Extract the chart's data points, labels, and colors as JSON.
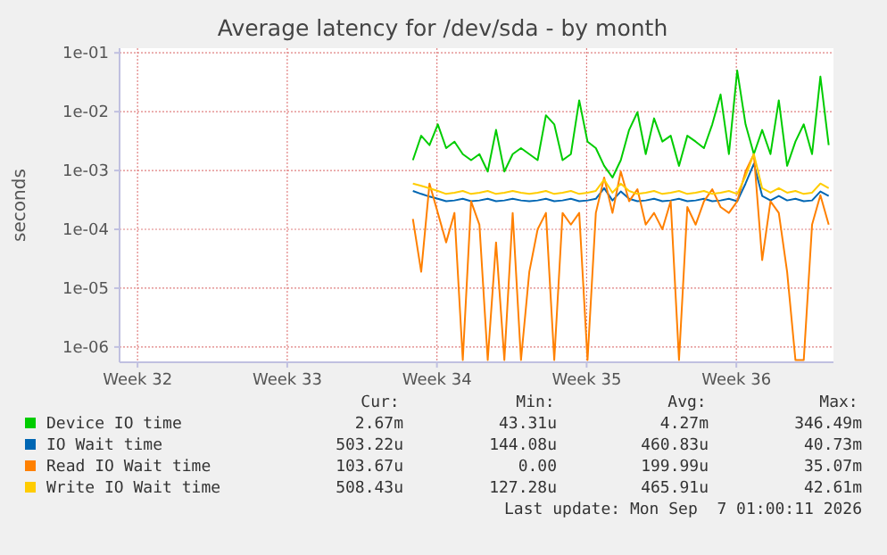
{
  "chart_data": {
    "type": "line",
    "title": "Average latency for /dev/sda - by month",
    "ylabel": "seconds",
    "log": true,
    "grid": true,
    "legend": "bottom",
    "xlim": [
      "2026-08-04T15:50",
      "2026-09-07T01:00"
    ],
    "xticks": [
      {
        "value": "2026-08-05T12:00",
        "label": "Week 32"
      },
      {
        "value": "2026-08-12T12:00",
        "label": "Week 33"
      },
      {
        "value": "2026-08-19T12:00",
        "label": "Week 34"
      },
      {
        "value": "2026-08-26T12:00",
        "label": "Week 35"
      },
      {
        "value": "2026-09-02T12:00",
        "label": "Week 36"
      }
    ],
    "ylim": [
      5.5e-07,
      0.12
    ],
    "yticks": [
      {
        "value": 1e-06,
        "label": "1e-06"
      },
      {
        "value": 1e-05,
        "label": "1e-05"
      },
      {
        "value": 0.0001,
        "label": "1e-04"
      },
      {
        "value": 0.001,
        "label": "1e-03"
      },
      {
        "value": 0.01,
        "label": "1e-02"
      },
      {
        "value": 0.1,
        "label": "1e-01"
      }
    ],
    "x": [
      "2026-08-18T09:00",
      "2026-08-18T18:20",
      "2026-08-19T03:40",
      "2026-08-19T13:00",
      "2026-08-19T22:20",
      "2026-08-20T07:40",
      "2026-08-20T17:00",
      "2026-08-21T02:20",
      "2026-08-21T11:40",
      "2026-08-21T21:00",
      "2026-08-22T06:20",
      "2026-08-22T15:40",
      "2026-08-23T01:00",
      "2026-08-23T10:20",
      "2026-08-23T19:40",
      "2026-08-24T05:00",
      "2026-08-24T14:20",
      "2026-08-24T23:40",
      "2026-08-25T09:00",
      "2026-08-25T18:20",
      "2026-08-26T03:40",
      "2026-08-26T13:00",
      "2026-08-26T22:20",
      "2026-08-27T07:40",
      "2026-08-27T17:00",
      "2026-08-28T02:20",
      "2026-08-28T11:40",
      "2026-08-28T21:00",
      "2026-08-29T06:20",
      "2026-08-29T15:40",
      "2026-08-30T01:00",
      "2026-08-30T10:20",
      "2026-08-30T19:40",
      "2026-08-31T05:00",
      "2026-08-31T14:20",
      "2026-08-31T23:40",
      "2026-09-01T09:00",
      "2026-09-01T18:20",
      "2026-09-02T03:40",
      "2026-09-02T13:00",
      "2026-09-02T22:20",
      "2026-09-03T07:40",
      "2026-09-03T17:00",
      "2026-09-04T02:20",
      "2026-09-04T11:40",
      "2026-09-04T21:00",
      "2026-09-05T06:20",
      "2026-09-05T15:40",
      "2026-09-06T01:00",
      "2026-09-06T10:20",
      "2026-09-06T19:40"
    ],
    "series": [
      {
        "name": "Device IO time",
        "color": "#00cc00",
        "values": [
          0.0015,
          0.0039,
          0.0027,
          0.0061,
          0.0024,
          0.0031,
          0.0019,
          0.0015,
          0.0019,
          0.00096,
          0.0049,
          0.00096,
          0.0019,
          0.0024,
          0.0019,
          0.0015,
          0.0087,
          0.0061,
          0.0015,
          0.0019,
          0.0156,
          0.0031,
          0.0024,
          0.0012,
          0.00076,
          0.0015,
          0.0049,
          0.0098,
          0.0019,
          0.0077,
          0.0031,
          0.0039,
          0.0012,
          0.0039,
          0.0031,
          0.0024,
          0.0061,
          0.0196,
          0.0019,
          0.05,
          0.0061,
          0.0019,
          0.0049,
          0.0019,
          0.0156,
          0.0012,
          0.0031,
          0.0061,
          0.0019,
          0.0395,
          0.0027
        ]
      },
      {
        "name": "IO Wait time",
        "color": "#0066b3",
        "values": [
          0.00045,
          0.0004,
          0.00036,
          0.00033,
          0.0003,
          0.00031,
          0.00033,
          0.0003,
          0.00031,
          0.00033,
          0.0003,
          0.00031,
          0.00033,
          0.00031,
          0.0003,
          0.00031,
          0.00033,
          0.0003,
          0.00031,
          0.00033,
          0.0003,
          0.00031,
          0.00033,
          0.0005,
          0.00031,
          0.00044,
          0.00033,
          0.0003,
          0.00031,
          0.00033,
          0.0003,
          0.00031,
          0.00033,
          0.0003,
          0.00031,
          0.00033,
          0.0003,
          0.00031,
          0.00033,
          0.0003,
          0.0006,
          0.0013,
          0.00037,
          0.00031,
          0.00037,
          0.00031,
          0.00033,
          0.0003,
          0.00031,
          0.00044,
          0.00037
        ]
      },
      {
        "name": "Read IO Wait time",
        "color": "#ff8000",
        "values": [
          0.00015,
          1.9e-05,
          0.0006,
          0.00019,
          6e-05,
          0.00019,
          6e-07,
          0.0003,
          0.00012,
          6e-07,
          6e-05,
          6e-07,
          0.00019,
          6e-07,
          1.9e-05,
          0.0001,
          0.00019,
          6e-07,
          0.00019,
          0.00012,
          0.00019,
          6e-07,
          0.00019,
          0.00076,
          0.00019,
          0.00096,
          0.0003,
          0.00048,
          0.00012,
          0.00019,
          0.0001,
          0.0003,
          6e-07,
          0.00024,
          0.00012,
          0.0003,
          0.00048,
          0.00024,
          0.00019,
          0.0003,
          0.00096,
          0.0019,
          3e-05,
          0.0003,
          0.00019,
          1.9e-05,
          6e-07,
          6e-07,
          0.00012,
          0.00038,
          0.00012
        ]
      },
      {
        "name": "Write IO Wait time",
        "color": "#ffcc00",
        "values": [
          0.0006,
          0.00055,
          0.0005,
          0.00045,
          0.0004,
          0.00042,
          0.00045,
          0.0004,
          0.00042,
          0.00045,
          0.0004,
          0.00042,
          0.00045,
          0.00042,
          0.0004,
          0.00042,
          0.00045,
          0.0004,
          0.00042,
          0.00045,
          0.0004,
          0.00042,
          0.00045,
          0.0007,
          0.00042,
          0.0006,
          0.00045,
          0.0004,
          0.00042,
          0.00045,
          0.0004,
          0.00042,
          0.00045,
          0.0004,
          0.00042,
          0.00045,
          0.0004,
          0.00042,
          0.00045,
          0.0004,
          0.0008,
          0.0019,
          0.0005,
          0.00042,
          0.0005,
          0.00042,
          0.00045,
          0.0004,
          0.00042,
          0.0006,
          0.0005
        ]
      }
    ],
    "annotations": [
      "Cur:",
      "Min:",
      "Avg:",
      "Max:",
      "2.67m",
      "43.31u",
      "4.27m",
      "346.49m",
      "503.22u",
      "144.08u",
      "460.83u",
      "40.73m",
      "103.67u",
      "0.00",
      "199.99u",
      "35.07m",
      "508.43u",
      "127.28u",
      "465.91u",
      "42.61m",
      "Last update: Mon Sep  7 01:00:11 2026"
    ]
  }
}
